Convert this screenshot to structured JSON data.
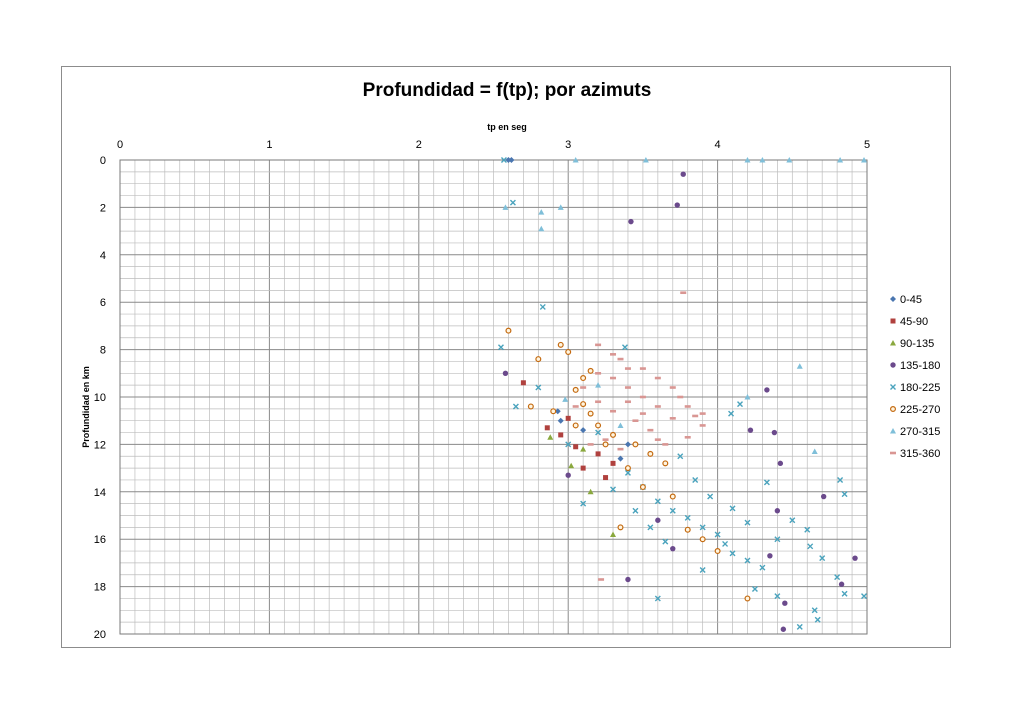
{
  "chart_data": {
    "type": "scatter",
    "title": "Profundidad = f(tp); por azimuts",
    "xlabel": "tp en seg",
    "ylabel": "Profundidad en km",
    "xlim": [
      0,
      5
    ],
    "ylim": [
      0,
      20
    ],
    "y_inverted": true,
    "x_axis_position": "top",
    "x_ticks": [
      "0",
      "1",
      "2",
      "3",
      "4",
      "5"
    ],
    "y_ticks": [
      "0",
      "2",
      "4",
      "6",
      "8",
      "10",
      "12",
      "14",
      "16",
      "18",
      "20"
    ],
    "grid": true,
    "legend_position": "right",
    "series": [
      {
        "name": "0-45",
        "color": "#4a76b0",
        "marker": "diamond",
        "points": [
          [
            2.62,
            0.0
          ],
          [
            2.6,
            0.0
          ],
          [
            2.93,
            10.6
          ],
          [
            3.1,
            11.4
          ],
          [
            3.4,
            12.0
          ],
          [
            3.35,
            12.6
          ],
          [
            2.95,
            11.0
          ]
        ]
      },
      {
        "name": "45-90",
        "color": "#b0413e",
        "marker": "square",
        "points": [
          [
            2.7,
            9.4
          ],
          [
            2.86,
            11.3
          ],
          [
            2.95,
            11.6
          ],
          [
            3.0,
            10.9
          ],
          [
            3.05,
            12.1
          ],
          [
            3.2,
            12.4
          ],
          [
            3.1,
            13.0
          ],
          [
            3.25,
            13.4
          ],
          [
            3.3,
            12.8
          ]
        ]
      },
      {
        "name": "90-135",
        "color": "#8aa83e",
        "marker": "triangle",
        "points": [
          [
            2.88,
            11.7
          ],
          [
            3.02,
            12.9
          ],
          [
            3.3,
            15.8
          ],
          [
            3.1,
            12.2
          ],
          [
            3.15,
            14.0
          ]
        ]
      },
      {
        "name": "135-180",
        "color": "#6b4a8c",
        "marker": "circle",
        "points": [
          [
            3.77,
            0.6
          ],
          [
            3.73,
            1.9
          ],
          [
            3.42,
            2.6
          ],
          [
            2.58,
            9.0
          ],
          [
            4.33,
            9.7
          ],
          [
            4.22,
            11.4
          ],
          [
            4.38,
            11.5
          ],
          [
            4.42,
            12.8
          ],
          [
            4.71,
            14.2
          ],
          [
            4.4,
            14.8
          ],
          [
            4.35,
            16.7
          ],
          [
            4.92,
            16.8
          ],
          [
            4.83,
            17.9
          ],
          [
            3.4,
            17.7
          ],
          [
            4.45,
            18.7
          ],
          [
            4.44,
            19.8
          ],
          [
            3.6,
            15.2
          ],
          [
            3.0,
            13.3
          ],
          [
            3.7,
            16.4
          ]
        ]
      },
      {
        "name": "180-225",
        "color": "#4aa3bd",
        "marker": "x",
        "points": [
          [
            2.57,
            0.0
          ],
          [
            2.63,
            1.8
          ],
          [
            2.83,
            6.2
          ],
          [
            2.55,
            7.9
          ],
          [
            3.38,
            7.9
          ],
          [
            2.65,
            10.4
          ],
          [
            2.8,
            9.6
          ],
          [
            3.0,
            12.0
          ],
          [
            3.2,
            11.5
          ],
          [
            3.4,
            13.2
          ],
          [
            3.5,
            13.8
          ],
          [
            3.6,
            14.4
          ],
          [
            3.7,
            14.8
          ],
          [
            3.8,
            15.1
          ],
          [
            3.9,
            15.5
          ],
          [
            4.0,
            15.8
          ],
          [
            4.05,
            16.2
          ],
          [
            4.1,
            16.6
          ],
          [
            4.2,
            16.9
          ],
          [
            4.3,
            17.2
          ],
          [
            4.4,
            16.0
          ],
          [
            4.5,
            15.2
          ],
          [
            4.6,
            15.6
          ],
          [
            4.7,
            16.8
          ],
          [
            4.8,
            17.6
          ],
          [
            4.85,
            18.3
          ],
          [
            4.65,
            19.0
          ],
          [
            4.67,
            19.4
          ],
          [
            4.55,
            19.7
          ],
          [
            4.98,
            18.4
          ],
          [
            3.6,
            18.5
          ],
          [
            3.9,
            17.3
          ],
          [
            4.15,
            10.3
          ],
          [
            4.09,
            10.7
          ],
          [
            4.82,
            13.5
          ],
          [
            4.85,
            14.1
          ],
          [
            3.75,
            12.5
          ],
          [
            3.85,
            13.5
          ],
          [
            3.95,
            14.2
          ],
          [
            4.1,
            14.7
          ],
          [
            4.2,
            15.3
          ],
          [
            3.65,
            16.1
          ],
          [
            3.55,
            15.5
          ],
          [
            3.45,
            14.8
          ],
          [
            3.3,
            13.9
          ],
          [
            4.25,
            18.1
          ],
          [
            4.4,
            18.4
          ],
          [
            4.33,
            13.6
          ],
          [
            4.62,
            16.3
          ],
          [
            3.1,
            14.5
          ]
        ]
      },
      {
        "name": "225-270",
        "color": "#c46a10",
        "marker": "ring",
        "points": [
          [
            2.6,
            7.2
          ],
          [
            2.8,
            8.4
          ],
          [
            2.95,
            7.8
          ],
          [
            3.0,
            8.1
          ],
          [
            3.05,
            9.7
          ],
          [
            3.1,
            10.3
          ],
          [
            3.15,
            10.7
          ],
          [
            3.2,
            11.2
          ],
          [
            3.3,
            11.6
          ],
          [
            3.45,
            12.0
          ],
          [
            3.55,
            12.4
          ],
          [
            3.65,
            12.8
          ],
          [
            3.05,
            11.2
          ],
          [
            2.9,
            10.6
          ],
          [
            2.75,
            10.4
          ],
          [
            3.25,
            12.0
          ],
          [
            3.4,
            13.0
          ],
          [
            3.5,
            13.8
          ],
          [
            3.7,
            14.2
          ],
          [
            3.8,
            15.6
          ],
          [
            3.9,
            16.0
          ],
          [
            4.0,
            16.5
          ],
          [
            4.2,
            18.5
          ],
          [
            3.35,
            15.5
          ],
          [
            3.1,
            9.2
          ],
          [
            3.15,
            8.9
          ]
        ]
      },
      {
        "name": "270-315",
        "color": "#7fbfd9",
        "marker": "triangle",
        "points": [
          [
            2.58,
            2.0
          ],
          [
            2.82,
            2.2
          ],
          [
            2.82,
            2.9
          ],
          [
            2.95,
            2.0
          ],
          [
            3.05,
            0.0
          ],
          [
            3.52,
            0.0
          ],
          [
            4.3,
            0.0
          ],
          [
            4.48,
            0.0
          ],
          [
            4.82,
            0.0
          ],
          [
            4.98,
            0.0
          ],
          [
            4.2,
            0.0
          ],
          [
            4.55,
            8.7
          ],
          [
            4.2,
            10.0
          ],
          [
            4.65,
            12.3
          ],
          [
            2.98,
            10.1
          ],
          [
            3.2,
            9.5
          ],
          [
            3.35,
            11.2
          ]
        ]
      },
      {
        "name": "315-360",
        "color": "#d99693",
        "marker": "dash",
        "points": [
          [
            3.77,
            5.6
          ],
          [
            3.2,
            7.8
          ],
          [
            3.3,
            8.2
          ],
          [
            3.35,
            8.4
          ],
          [
            3.5,
            8.8
          ],
          [
            3.6,
            9.2
          ],
          [
            3.7,
            9.6
          ],
          [
            3.75,
            10.0
          ],
          [
            3.8,
            10.4
          ],
          [
            3.85,
            10.8
          ],
          [
            3.9,
            11.2
          ],
          [
            3.3,
            9.2
          ],
          [
            3.4,
            9.6
          ],
          [
            3.5,
            10.0
          ],
          [
            3.6,
            10.4
          ],
          [
            3.7,
            10.9
          ],
          [
            3.2,
            10.2
          ],
          [
            3.3,
            10.6
          ],
          [
            3.45,
            11.0
          ],
          [
            3.55,
            11.4
          ],
          [
            3.6,
            11.8
          ],
          [
            3.1,
            9.6
          ],
          [
            3.2,
            9.0
          ],
          [
            3.4,
            8.8
          ],
          [
            3.25,
            11.8
          ],
          [
            3.35,
            12.2
          ],
          [
            3.15,
            12.0
          ],
          [
            3.05,
            10.4
          ],
          [
            3.22,
            17.7
          ],
          [
            3.65,
            12.0
          ],
          [
            3.8,
            11.7
          ],
          [
            3.9,
            10.7
          ],
          [
            3.5,
            10.7
          ],
          [
            3.4,
            10.2
          ]
        ]
      }
    ]
  }
}
